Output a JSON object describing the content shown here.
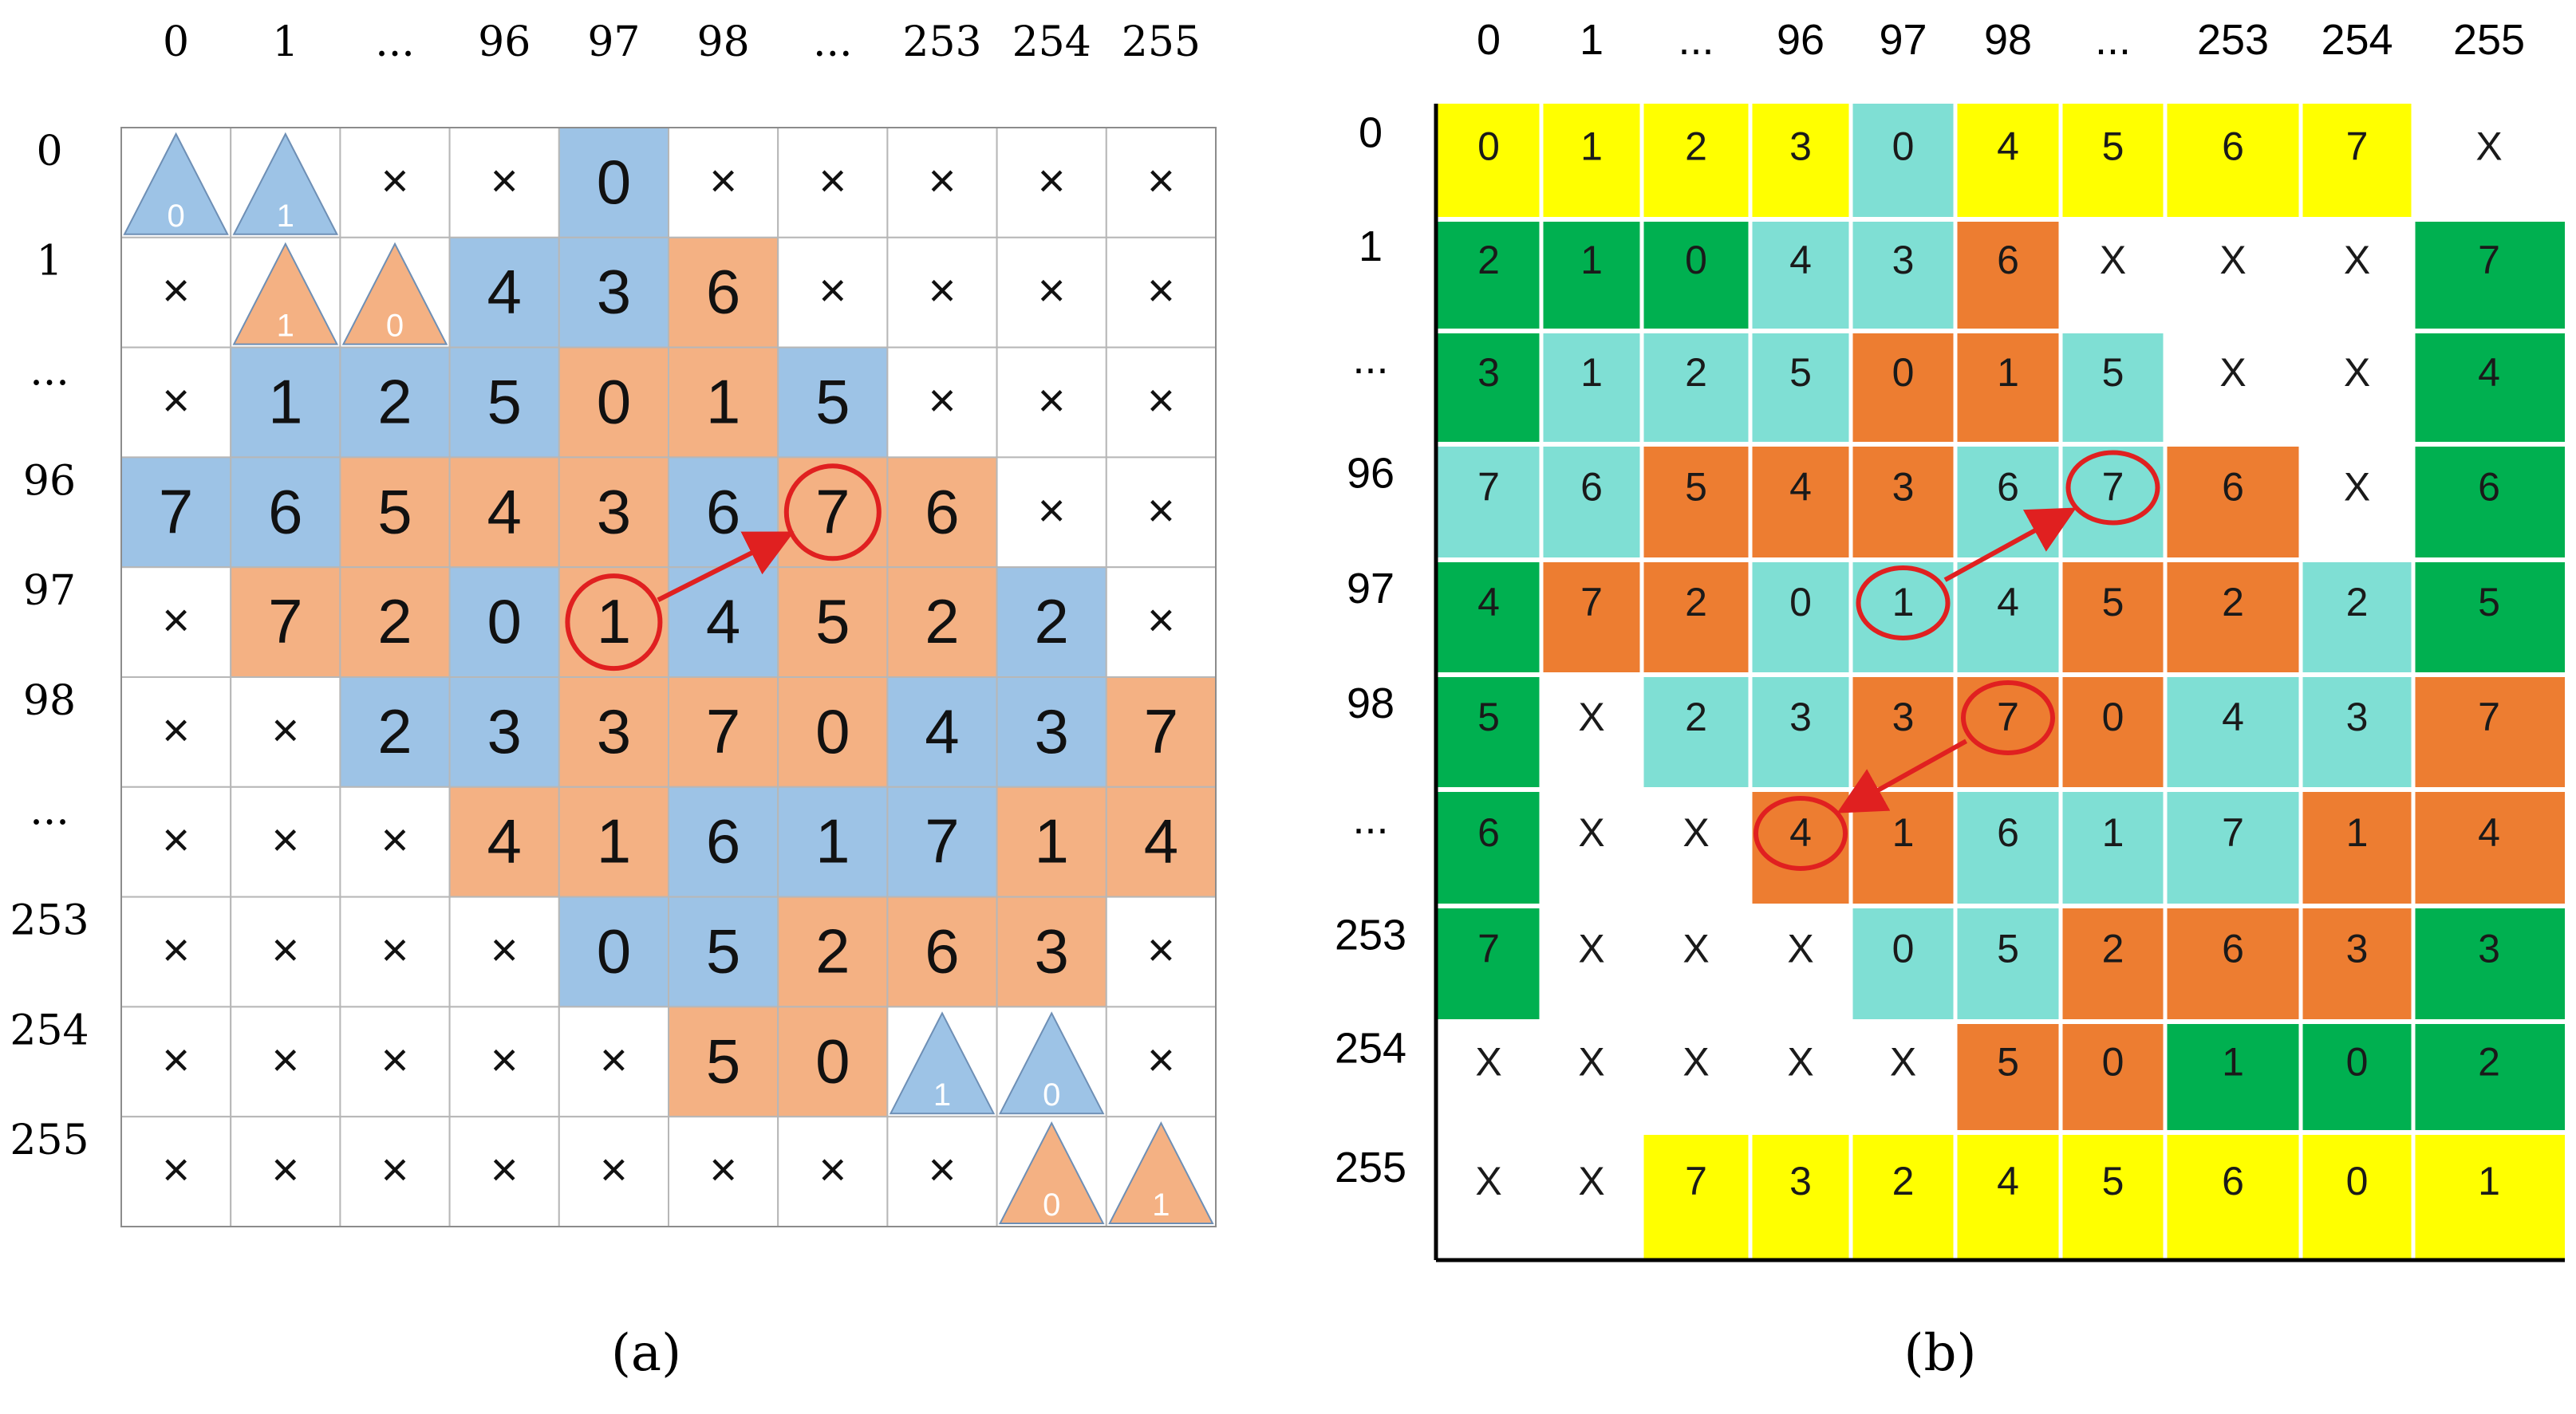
{
  "panel_a": {
    "col_labels": [
      "0",
      "1",
      "...",
      "96",
      "97",
      "98",
      "...",
      "253",
      "254",
      "255"
    ],
    "row_labels": [
      "0",
      "1",
      "...",
      "96",
      "97",
      "98",
      "...",
      "253",
      "254",
      "255"
    ],
    "caption": "(a)",
    "fill_colors": {
      "B": "#9dc3e6",
      "O": "#f4b183",
      "W": "#ffffff"
    },
    "arrow_color": "#e02020",
    "fills": [
      [
        "W",
        "W",
        "W",
        "W",
        "B",
        "W",
        "W",
        "W",
        "W",
        "W"
      ],
      [
        "W",
        "W",
        "W",
        "B",
        "B",
        "O",
        "W",
        "W",
        "W",
        "W"
      ],
      [
        "W",
        "B",
        "B",
        "B",
        "O",
        "O",
        "B",
        "W",
        "W",
        "W"
      ],
      [
        "B",
        "B",
        "O",
        "O",
        "O",
        "B",
        "O",
        "O",
        "W",
        "W"
      ],
      [
        "W",
        "O",
        "O",
        "B",
        "O",
        "B",
        "O",
        "O",
        "B",
        "W"
      ],
      [
        "W",
        "W",
        "B",
        "B",
        "O",
        "O",
        "O",
        "B",
        "B",
        "O"
      ],
      [
        "W",
        "W",
        "W",
        "O",
        "O",
        "B",
        "B",
        "B",
        "O",
        "O"
      ],
      [
        "W",
        "W",
        "W",
        "W",
        "B",
        "B",
        "O",
        "O",
        "O",
        "W"
      ],
      [
        "W",
        "W",
        "W",
        "W",
        "W",
        "O",
        "O",
        "W",
        "W",
        "W"
      ],
      [
        "W",
        "W",
        "W",
        "W",
        "W",
        "W",
        "W",
        "W",
        "W",
        "W"
      ]
    ],
    "values": [
      [
        "T0",
        "T1",
        "×",
        "×",
        "0",
        "×",
        "×",
        "×",
        "×",
        "×"
      ],
      [
        "×",
        "T1",
        "T0",
        "4",
        "3",
        "6",
        "×",
        "×",
        "×",
        "×"
      ],
      [
        "×",
        "1",
        "2",
        "5",
        "0",
        "1",
        "5",
        "×",
        "×",
        "×"
      ],
      [
        "7",
        "6",
        "5",
        "4",
        "3",
        "6",
        "7",
        "6",
        "×",
        "×"
      ],
      [
        "×",
        "7",
        "2",
        "0",
        "1",
        "4",
        "5",
        "2",
        "2",
        "×"
      ],
      [
        "×",
        "×",
        "2",
        "3",
        "3",
        "7",
        "0",
        "4",
        "3",
        "7"
      ],
      [
        "×",
        "×",
        "×",
        "4",
        "1",
        "6",
        "1",
        "7",
        "1",
        "4"
      ],
      [
        "×",
        "×",
        "×",
        "×",
        "0",
        "5",
        "2",
        "6",
        "3",
        "×"
      ],
      [
        "×",
        "×",
        "×",
        "×",
        "×",
        "5",
        "0",
        "T1",
        "T0",
        "×"
      ],
      [
        "×",
        "×",
        "×",
        "×",
        "×",
        "×",
        "×",
        "×",
        "T0",
        "T1"
      ]
    ],
    "triangles": [
      {
        "row": 0,
        "col": 0,
        "label": "0",
        "color": "#9dc3e6"
      },
      {
        "row": 0,
        "col": 1,
        "label": "1",
        "color": "#9dc3e6"
      },
      {
        "row": 1,
        "col": 1,
        "label": "1",
        "color": "#f4b183"
      },
      {
        "row": 1,
        "col": 2,
        "label": "0",
        "color": "#f4b183"
      },
      {
        "row": 8,
        "col": 7,
        "label": "1",
        "color": "#9dc3e6"
      },
      {
        "row": 8,
        "col": 8,
        "label": "0",
        "color": "#9dc3e6"
      },
      {
        "row": 9,
        "col": 8,
        "label": "0",
        "color": "#f4b183"
      },
      {
        "row": 9,
        "col": 9,
        "label": "1",
        "color": "#f4b183"
      }
    ],
    "circles": [
      {
        "row": 4,
        "col": 4
      },
      {
        "row": 3,
        "col": 6
      }
    ],
    "arrows": [
      {
        "from_row": 4,
        "from_col": 4,
        "to_row": 3,
        "to_col": 6
      }
    ]
  },
  "panel_b": {
    "col_labels": [
      "0",
      "1",
      "...",
      "96",
      "97",
      "98",
      "...",
      "253",
      "254",
      "255"
    ],
    "row_labels": [
      "0",
      "1",
      "...",
      "96",
      "97",
      "98",
      "...",
      "253",
      "254",
      "255"
    ],
    "caption": "(b)",
    "fill_colors": {
      "Y": "#ffff00",
      "G": "#00b050",
      "C": "#7fdfd4",
      "O": "#ed7d31",
      "W": "#ffffff"
    },
    "arrow_color": "#e02020",
    "fills": [
      [
        "Y",
        "Y",
        "Y",
        "Y",
        "C",
        "Y",
        "Y",
        "Y",
        "Y",
        "W"
      ],
      [
        "G",
        "G",
        "G",
        "C",
        "C",
        "O",
        "W",
        "W",
        "W",
        "G"
      ],
      [
        "G",
        "C",
        "C",
        "C",
        "O",
        "O",
        "C",
        "W",
        "W",
        "G"
      ],
      [
        "C",
        "C",
        "O",
        "O",
        "O",
        "C",
        "C",
        "O",
        "W",
        "G"
      ],
      [
        "G",
        "O",
        "O",
        "C",
        "C",
        "C",
        "O",
        "O",
        "C",
        "G"
      ],
      [
        "G",
        "W",
        "C",
        "C",
        "O",
        "O",
        "O",
        "C",
        "C",
        "O"
      ],
      [
        "G",
        "W",
        "W",
        "O",
        "O",
        "C",
        "C",
        "C",
        "O",
        "O"
      ],
      [
        "G",
        "W",
        "W",
        "W",
        "C",
        "C",
        "O",
        "O",
        "O",
        "G"
      ],
      [
        "W",
        "W",
        "W",
        "W",
        "W",
        "O",
        "O",
        "G",
        "G",
        "G"
      ],
      [
        "W",
        "W",
        "Y",
        "Y",
        "Y",
        "Y",
        "Y",
        "Y",
        "Y",
        "Y"
      ]
    ],
    "values": [
      [
        "0",
        "1",
        "2",
        "3",
        "0",
        "4",
        "5",
        "6",
        "7",
        "X"
      ],
      [
        "2",
        "1",
        "0",
        "4",
        "3",
        "6",
        "X",
        "X",
        "X",
        "7"
      ],
      [
        "3",
        "1",
        "2",
        "5",
        "0",
        "1",
        "5",
        "X",
        "X",
        "4"
      ],
      [
        "7",
        "6",
        "5",
        "4",
        "3",
        "6",
        "7",
        "6",
        "X",
        "6"
      ],
      [
        "4",
        "7",
        "2",
        "0",
        "1",
        "4",
        "5",
        "2",
        "2",
        "5"
      ],
      [
        "5",
        "X",
        "2",
        "3",
        "3",
        "7",
        "0",
        "4",
        "3",
        "7"
      ],
      [
        "6",
        "X",
        "X",
        "4",
        "1",
        "6",
        "1",
        "7",
        "1",
        "4"
      ],
      [
        "7",
        "X",
        "X",
        "X",
        "0",
        "5",
        "2",
        "6",
        "3",
        "3"
      ],
      [
        "X",
        "X",
        "X",
        "X",
        "X",
        "5",
        "0",
        "1",
        "0",
        "2"
      ],
      [
        "X",
        "X",
        "7",
        "3",
        "2",
        "4",
        "5",
        "6",
        "0",
        "1"
      ]
    ],
    "circles": [
      {
        "row": 4,
        "col": 4
      },
      {
        "row": 3,
        "col": 6
      },
      {
        "row": 5,
        "col": 5
      },
      {
        "row": 6,
        "col": 3
      }
    ],
    "arrows": [
      {
        "from_row": 4,
        "from_col": 4,
        "to_row": 3,
        "to_col": 6
      },
      {
        "from_row": 5,
        "from_col": 5,
        "to_row": 6,
        "to_col": 3
      }
    ]
  }
}
